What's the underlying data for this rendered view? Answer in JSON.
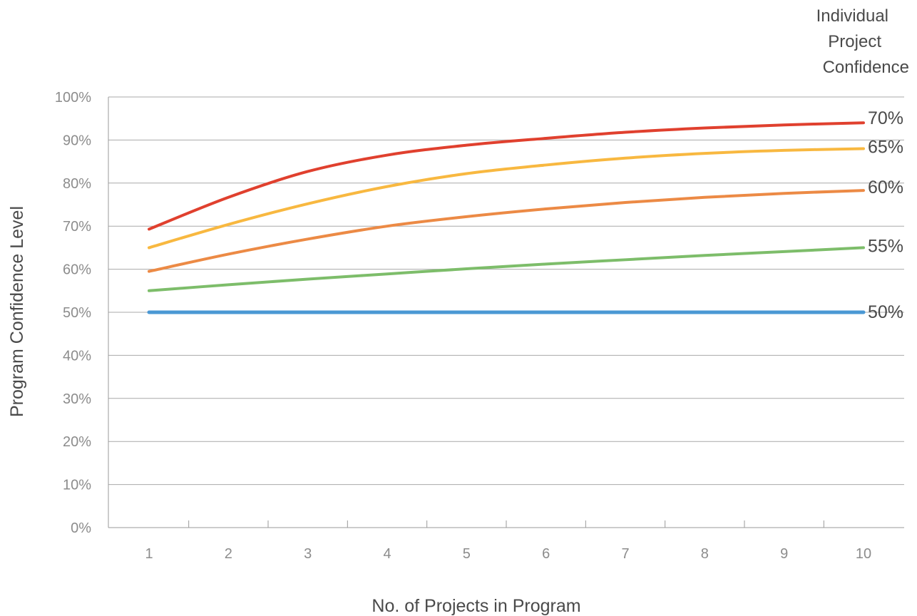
{
  "chart_data": {
    "type": "line",
    "title": "",
    "xlabel": "No. of Projects in Program",
    "ylabel": "Program Confidence Level",
    "legend_title": [
      "Individual",
      "Project",
      "Confidence"
    ],
    "legend_placement": "right-end-labels",
    "grid": true,
    "x": [
      1,
      2,
      3,
      4,
      5,
      6,
      7,
      8,
      9,
      10
    ],
    "x_tick_labels": [
      "1",
      "2",
      "3",
      "4",
      "5",
      "6",
      "7",
      "8",
      "9",
      "10"
    ],
    "ylim": [
      0,
      100
    ],
    "y_ticks": [
      0,
      10,
      20,
      30,
      40,
      50,
      60,
      70,
      80,
      90,
      100
    ],
    "y_tick_labels": [
      "0%",
      "10%",
      "20%",
      "30%",
      "40%",
      "50%",
      "60%",
      "70%",
      "80%",
      "90%",
      "100%"
    ],
    "series": [
      {
        "name": "50%",
        "color": "#4a98d4",
        "values": [
          50,
          50,
          50,
          50,
          50,
          50,
          50,
          50,
          50,
          50
        ]
      },
      {
        "name": "55%",
        "color": "#7dbd6a",
        "values": [
          55,
          56.4,
          57.7,
          58.9,
          60.1,
          61.2,
          62.2,
          63.2,
          64.1,
          65
        ]
      },
      {
        "name": "60%",
        "color": "#ec8a45",
        "values": [
          59.5,
          63.5,
          67,
          70,
          72.2,
          74,
          75.5,
          76.7,
          77.6,
          78.3
        ]
      },
      {
        "name": "65%",
        "color": "#f8b840",
        "values": [
          65,
          70.4,
          75.2,
          79.2,
          82.2,
          84.2,
          85.8,
          86.9,
          87.6,
          88
        ]
      },
      {
        "name": "70%",
        "color": "#e0402e",
        "values": [
          69.3,
          76.7,
          82.7,
          86.5,
          88.8,
          90.4,
          91.8,
          92.8,
          93.5,
          94
        ]
      }
    ]
  }
}
